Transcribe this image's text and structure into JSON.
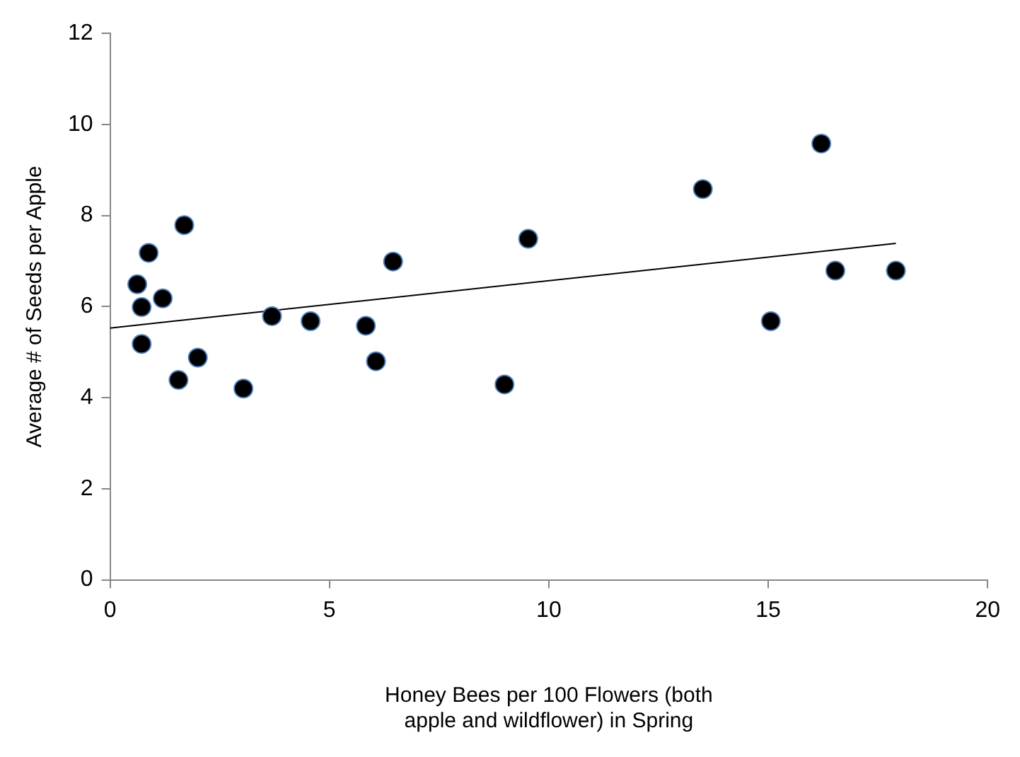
{
  "chart_data": {
    "type": "scatter",
    "xlabel": "Honey Bees per 100 Flowers (both apple and wildflower) in Spring",
    "ylabel": "Average # of Seeds per Apple",
    "x": [
      0.62,
      0.72,
      0.72,
      0.88,
      1.2,
      1.69,
      1.56,
      2.0,
      3.04,
      3.69,
      4.57,
      5.83,
      6.06,
      6.45,
      8.99,
      9.53,
      13.51,
      15.06,
      16.21,
      16.53,
      17.91
    ],
    "series": [
      {
        "color": "#000000",
        "marker": "circle",
        "values": [
          6.49,
          5.99,
          5.18,
          7.18,
          6.18,
          7.79,
          4.39,
          4.88,
          4.2,
          5.79,
          5.68,
          5.58,
          4.8,
          6.99,
          4.29,
          7.49,
          8.58,
          5.68,
          9.58,
          6.79,
          6.79
        ]
      },
      {
        "type": "line",
        "color": "#000000",
        "marker": "none",
        "x": [
          0,
          17.91
        ],
        "values": [
          5.53,
          7.39
        ]
      }
    ],
    "xlim": [
      0,
      20
    ],
    "xticks": [
      0,
      5,
      10,
      15,
      20
    ],
    "ylim": [
      0,
      12
    ],
    "yticks": [
      0,
      2,
      4,
      6,
      8,
      10,
      12
    ],
    "grid": false,
    "legend": false
  }
}
